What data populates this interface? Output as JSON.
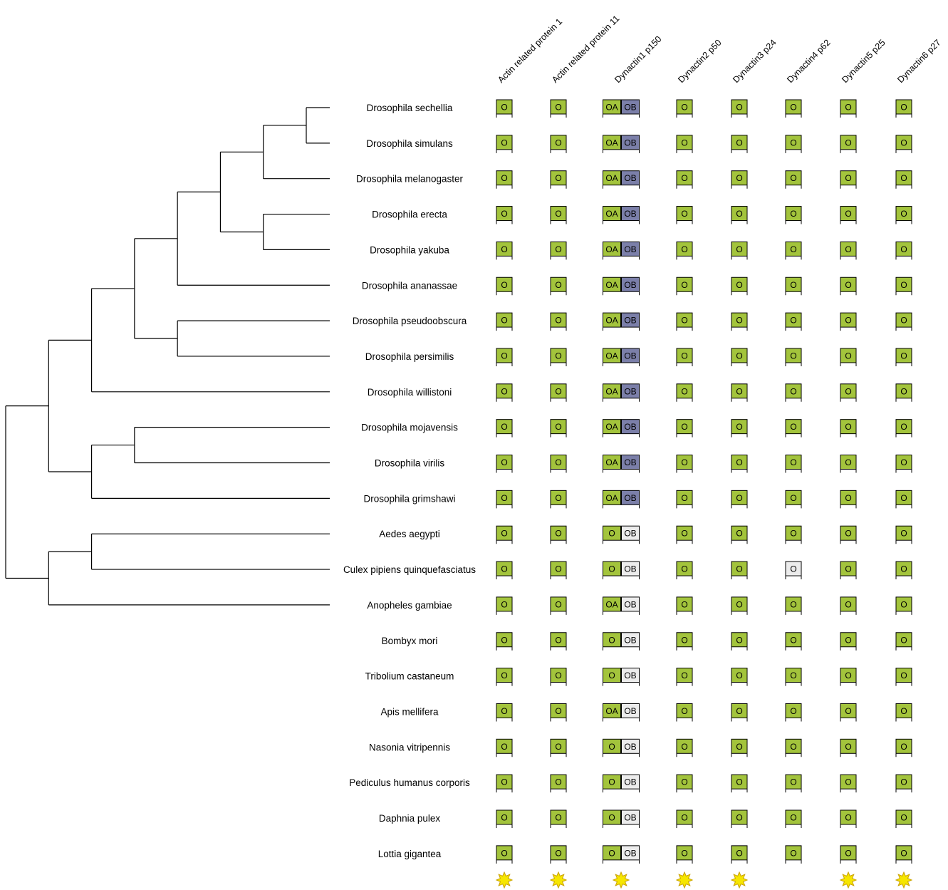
{
  "tree": {
    "species": [
      "Drosophila sechellia",
      "Drosophila simulans",
      "Drosophila melanogaster",
      "Drosophila erecta",
      "Drosophila yakuba",
      "Drosophila ananassae",
      "Drosophila pseudoobscura",
      "Drosophila persimilis",
      "Drosophila willistoni",
      "Drosophila mojavensis",
      "Drosophila virilis",
      "Drosophila grimshawi",
      "Aedes aegypti",
      "Culex pipiens quinquefasciatus",
      "Anopheles gambiae",
      "Bombyx mori",
      "Tribolium castaneum",
      "Apis mellifera",
      "Nasonia vitripennis",
      "Pediculus humanus corporis",
      "Daphnia pulex",
      "Lottia gigantea"
    ],
    "topology": [
      [
        [
          [
            [
              [
                [
                  [
                    "Drosophila sechellia",
                    "Drosophila simulans"
                  ],
                  "Drosophila melanogaster"
                ],
                [
                  "Drosophila erecta",
                  "Drosophila yakuba"
                ]
              ],
              "Drosophila ananassae"
            ],
            [
              "Drosophila pseudoobscura",
              "Drosophila persimilis"
            ]
          ],
          "Drosophila willistoni"
        ],
        [
          [
            "Drosophila mojavensis",
            "Drosophila virilis"
          ],
          "Drosophila grimshawi"
        ]
      ],
      [
        [
          "Aedes aegypti",
          "Culex pipiens quinquefasciatus"
        ],
        "Anopheles gambiae"
      ]
    ]
  },
  "genes": [
    {
      "name": "Actin related protein 1",
      "star": true
    },
    {
      "name": "Actin related protein 11",
      "star": true
    },
    {
      "name": "Dynactin1 p150",
      "star": true
    },
    {
      "name": "Dynactin2 p50",
      "star": true
    },
    {
      "name": "Dynactin3 p24",
      "star": true
    },
    {
      "name": "Dynactin4 p62",
      "star": false
    },
    {
      "name": "Dynactin5 p25",
      "star": true
    },
    {
      "name": "Dynactin6 p27",
      "star": true
    }
  ],
  "matrix": [
    [
      "O",
      "O",
      [
        "OA",
        "OB"
      ],
      "O",
      "O",
      "O",
      "O",
      "O"
    ],
    [
      "O",
      "O",
      [
        "OA",
        "OB"
      ],
      "O",
      "O",
      "O",
      "O",
      "O"
    ],
    [
      "O",
      "O",
      [
        "OA",
        "OB"
      ],
      "O",
      "O",
      "O",
      "O",
      "O"
    ],
    [
      "O",
      "O",
      [
        "OA",
        "OB"
      ],
      "O",
      "O",
      "O",
      "O",
      "O"
    ],
    [
      "O",
      "O",
      [
        "OA",
        "OB"
      ],
      "O",
      "O",
      "O",
      "O",
      "O"
    ],
    [
      "O",
      "O",
      [
        "OA",
        "OB"
      ],
      "O",
      "O",
      "O",
      "O",
      "O"
    ],
    [
      "O",
      "O",
      [
        "OA",
        "OB"
      ],
      "O",
      "O",
      "O",
      "O",
      "O"
    ],
    [
      "O",
      "O",
      [
        "OA",
        "OB"
      ],
      "O",
      "O",
      "O",
      "O",
      "O"
    ],
    [
      "O",
      "O",
      [
        "OA",
        "OB"
      ],
      "O",
      "O",
      "O",
      "O",
      "O"
    ],
    [
      "O",
      "O",
      [
        "OA",
        "OB"
      ],
      "O",
      "O",
      "O",
      "O",
      "O"
    ],
    [
      "O",
      "O",
      [
        "OA",
        "OB"
      ],
      "O",
      "O",
      "O",
      "O",
      "O"
    ],
    [
      "O",
      "O",
      [
        "OA",
        "OB"
      ],
      "O",
      "O",
      "O",
      "O",
      "O"
    ],
    [
      "O",
      "O",
      [
        "O",
        "OB"
      ],
      "O",
      "O",
      "O",
      "O",
      "O"
    ],
    [
      "O",
      "O",
      [
        "O",
        "OB"
      ],
      "O",
      "O",
      "O",
      "O",
      "O"
    ],
    [
      "O",
      "O",
      [
        "OA",
        "OB"
      ],
      "O",
      "O",
      "O",
      "O",
      "O"
    ],
    [
      "O",
      "O",
      [
        "O",
        "OB"
      ],
      "O",
      "O",
      "O",
      "O",
      "O"
    ],
    [
      "O",
      "O",
      [
        "O",
        "OB"
      ],
      "O",
      "O",
      "O",
      "O",
      "O"
    ],
    [
      "O",
      "O",
      [
        "OA",
        "OB"
      ],
      "O",
      "O",
      "O",
      "O",
      "O"
    ],
    [
      "O",
      "O",
      [
        "O",
        "OB"
      ],
      "O",
      "O",
      "O",
      "O",
      "O"
    ],
    [
      "O",
      "O",
      [
        "O",
        "OB"
      ],
      "O",
      "O",
      "O",
      "O",
      "O"
    ],
    [
      "O",
      "O",
      [
        "O",
        "OB"
      ],
      "O",
      "O",
      "O",
      "O",
      "O"
    ],
    [
      "O",
      "O",
      [
        "O",
        "OB"
      ],
      "O",
      "O",
      "O",
      "O",
      "O"
    ]
  ],
  "cell_status": [
    [
      "green",
      "green",
      [
        "green",
        "blue"
      ],
      "green",
      "green",
      "green",
      "green",
      "green"
    ],
    [
      "green",
      "green",
      [
        "green",
        "blue"
      ],
      "green",
      "green",
      "green",
      "green",
      "green"
    ],
    [
      "green",
      "green",
      [
        "green",
        "blue"
      ],
      "green",
      "green",
      "green",
      "green",
      "green"
    ],
    [
      "green",
      "green",
      [
        "green",
        "blue"
      ],
      "green",
      "green",
      "green",
      "green",
      "green"
    ],
    [
      "green",
      "green",
      [
        "green",
        "blue"
      ],
      "green",
      "green",
      "green",
      "green",
      "green"
    ],
    [
      "green",
      "green",
      [
        "green",
        "blue"
      ],
      "green",
      "green",
      "green",
      "green",
      "green"
    ],
    [
      "green",
      "green",
      [
        "green",
        "blue"
      ],
      "green",
      "green",
      "green",
      "green",
      "green"
    ],
    [
      "green",
      "green",
      [
        "green",
        "blue"
      ],
      "green",
      "green",
      "green",
      "green",
      "green"
    ],
    [
      "green",
      "green",
      [
        "green",
        "blue"
      ],
      "green",
      "green",
      "green",
      "green",
      "green"
    ],
    [
      "green",
      "green",
      [
        "green",
        "blue"
      ],
      "green",
      "green",
      "green",
      "green",
      "green"
    ],
    [
      "green",
      "green",
      [
        "green",
        "blue"
      ],
      "green",
      "green",
      "green",
      "green",
      "green"
    ],
    [
      "green",
      "green",
      [
        "green",
        "blue"
      ],
      "green",
      "green",
      "green",
      "green",
      "green"
    ],
    [
      "green",
      "green",
      [
        "green",
        "grey"
      ],
      "green",
      "green",
      "green",
      "green",
      "green"
    ],
    [
      "green",
      "green",
      [
        "green",
        "grey"
      ],
      "green",
      "green",
      "grey",
      "green",
      "green"
    ],
    [
      "green",
      "green",
      [
        "green",
        "grey"
      ],
      "green",
      "green",
      "green",
      "green",
      "green"
    ],
    [
      "green",
      "green",
      [
        "green",
        "grey"
      ],
      "green",
      "green",
      "green",
      "green",
      "green"
    ],
    [
      "green",
      "green",
      [
        "green",
        "grey"
      ],
      "green",
      "green",
      "green",
      "green",
      "green"
    ],
    [
      "green",
      "green",
      [
        "green",
        "grey"
      ],
      "green",
      "green",
      "green",
      "green",
      "green"
    ],
    [
      "green",
      "green",
      [
        "green",
        "grey"
      ],
      "green",
      "green",
      "green",
      "green",
      "green"
    ],
    [
      "green",
      "green",
      [
        "green",
        "grey"
      ],
      "green",
      "green",
      "green",
      "green",
      "green"
    ],
    [
      "green",
      "green",
      [
        "green",
        "grey"
      ],
      "green",
      "green",
      "green",
      "green",
      "green"
    ],
    [
      "green",
      "green",
      [
        "green",
        "grey"
      ],
      "green",
      "green",
      "green",
      "green",
      "green"
    ]
  ],
  "colors": {
    "green": "#a3c43c",
    "blue": "#7b7fa9",
    "grey": "#ececec",
    "star_fill": "#f6e600",
    "star_stroke": "#c9a000",
    "line": "#000000"
  }
}
